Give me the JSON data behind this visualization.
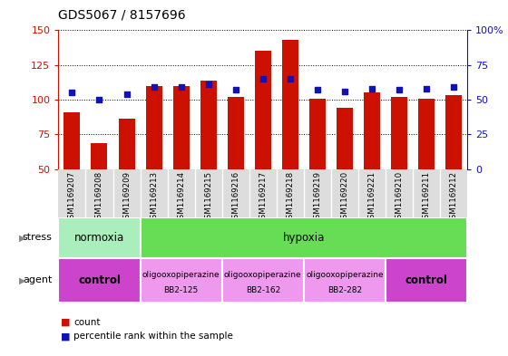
{
  "title": "GDS5067 / 8157696",
  "samples": [
    "GSM1169207",
    "GSM1169208",
    "GSM1169209",
    "GSM1169213",
    "GSM1169214",
    "GSM1169215",
    "GSM1169216",
    "GSM1169217",
    "GSM1169218",
    "GSM1169219",
    "GSM1169220",
    "GSM1169221",
    "GSM1169210",
    "GSM1169211",
    "GSM1169212"
  ],
  "counts": [
    91,
    69,
    86,
    110,
    110,
    114,
    102,
    135,
    143,
    101,
    94,
    105,
    102,
    101,
    103
  ],
  "percentiles": [
    55,
    50,
    54,
    59,
    59,
    61,
    57,
    65,
    65,
    57,
    56,
    58,
    57,
    58,
    59
  ],
  "ylim_left": [
    50,
    150
  ],
  "ylim_right": [
    0,
    100
  ],
  "yticks_left": [
    50,
    75,
    100,
    125,
    150
  ],
  "yticks_right": [
    0,
    25,
    50,
    75,
    100
  ],
  "bar_color": "#cc1100",
  "dot_color": "#1111bb",
  "stress_groups": [
    {
      "label": "normoxia",
      "start": 0,
      "end": 3,
      "color": "#aaeebb"
    },
    {
      "label": "hypoxia",
      "start": 3,
      "end": 15,
      "color": "#66dd55"
    }
  ],
  "agent_groups": [
    {
      "label": "control",
      "start": 0,
      "end": 3,
      "color": "#cc44cc"
    },
    {
      "label": "oligooxopiperazine\nBB2-125",
      "start": 3,
      "end": 6,
      "color": "#ee99ee"
    },
    {
      "label": "oligooxopiperazine\nBB2-162",
      "start": 6,
      "end": 9,
      "color": "#ee99ee"
    },
    {
      "label": "oligooxopiperazine\nBB2-282",
      "start": 9,
      "end": 12,
      "color": "#ee99ee"
    },
    {
      "label": "control",
      "start": 12,
      "end": 15,
      "color": "#cc44cc"
    }
  ],
  "stress_row_label": "stress",
  "agent_row_label": "agent",
  "legend_count_label": "count",
  "legend_pct_label": "percentile rank within the sample",
  "xlabels_bg": "#dddddd"
}
